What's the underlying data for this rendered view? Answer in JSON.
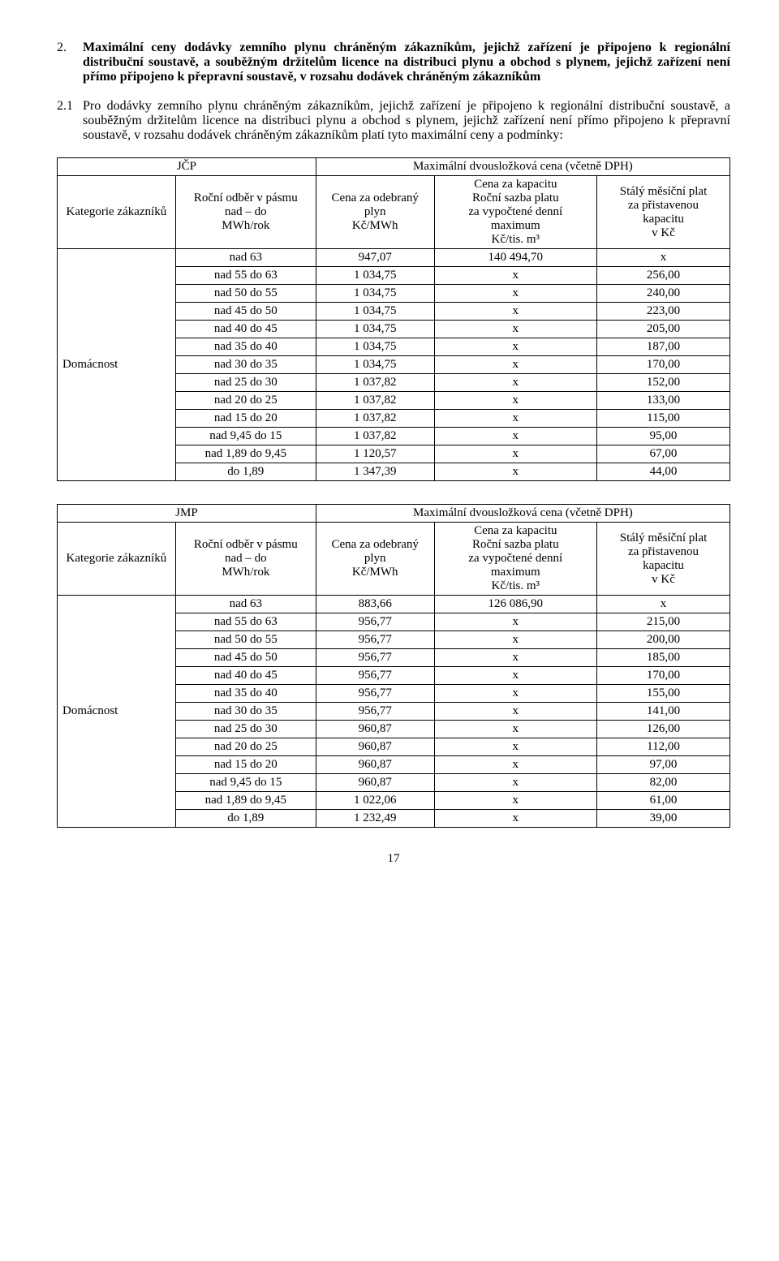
{
  "section2": {
    "num": "2.",
    "title": "Maximální ceny dodávky zemního plynu chráněným zákazníkům, jejichž zařízení je připojeno k regionální distribuční soustavě, a souběžným držitelům licence na distribuci plynu a obchod s plynem, jejichž zařízení není přímo připojeno k přepravní soustavě, v rozsahu dodávek chráněným zákazníkům"
  },
  "subsection21": {
    "num": "2.1",
    "body": "Pro dodávky zemního plynu chráněným zákazníkům, jejichž zařízení je připojeno k regionální distribuční soustavě, a souběžným držitelům licence na distribuci plynu a obchod s plynem, jejichž zařízení není přímo připojeno k přepravní soustavě, v rozsahu dodávek chráněným zákazníkům platí tyto maximální ceny a podmínky:"
  },
  "headers": {
    "merged": "Maximální dvousložková cena (včetně DPH)",
    "category": "Kategorie zákazníků",
    "range": "Roční odběr v pásmu\nnad – do\nMWh/rok",
    "price": "Cena za odebraný\nplyn\nKč/MWh",
    "capacity": "Cena za kapacitu\nRoční sazba platu\nza vypočtené denní\nmaximum\nKč/tis. m³",
    "monthly": "Stálý měsíční plat\nza přistavenou\nkapacitu\nv Kč"
  },
  "table_jcp": {
    "provider": "JČP",
    "category_label": "Domácnost",
    "rows": [
      {
        "range": "nad 63",
        "price": "947,07",
        "capacity": "140 494,70",
        "monthly": "x"
      },
      {
        "range": "nad 55 do 63",
        "price": "1 034,75",
        "capacity": "x",
        "monthly": "256,00"
      },
      {
        "range": "nad 50 do 55",
        "price": "1 034,75",
        "capacity": "x",
        "monthly": "240,00"
      },
      {
        "range": "nad 45 do 50",
        "price": "1 034,75",
        "capacity": "x",
        "monthly": "223,00"
      },
      {
        "range": "nad 40 do 45",
        "price": "1 034,75",
        "capacity": "x",
        "monthly": "205,00"
      },
      {
        "range": "nad 35 do 40",
        "price": "1 034,75",
        "capacity": "x",
        "monthly": "187,00"
      },
      {
        "range": "nad 30 do 35",
        "price": "1 034,75",
        "capacity": "x",
        "monthly": "170,00"
      },
      {
        "range": "nad 25 do 30",
        "price": "1 037,82",
        "capacity": "x",
        "monthly": "152,00"
      },
      {
        "range": "nad 20 do 25",
        "price": "1 037,82",
        "capacity": "x",
        "monthly": "133,00"
      },
      {
        "range": "nad 15 do 20",
        "price": "1 037,82",
        "capacity": "x",
        "monthly": "115,00"
      },
      {
        "range": "nad 9,45 do 15",
        "price": "1 037,82",
        "capacity": "x",
        "monthly": "95,00"
      },
      {
        "range": "nad 1,89 do 9,45",
        "price": "1 120,57",
        "capacity": "x",
        "monthly": "67,00"
      },
      {
        "range": "do 1,89",
        "price": "1 347,39",
        "capacity": "x",
        "monthly": "44,00"
      }
    ]
  },
  "table_jmp": {
    "provider": "JMP",
    "category_label": "Domácnost",
    "rows": [
      {
        "range": "nad 63",
        "price": "883,66",
        "capacity": "126 086,90",
        "monthly": "x"
      },
      {
        "range": "nad 55 do 63",
        "price": "956,77",
        "capacity": "x",
        "monthly": "215,00"
      },
      {
        "range": "nad 50 do 55",
        "price": "956,77",
        "capacity": "x",
        "monthly": "200,00"
      },
      {
        "range": "nad 45 do 50",
        "price": "956,77",
        "capacity": "x",
        "monthly": "185,00"
      },
      {
        "range": "nad 40 do 45",
        "price": "956,77",
        "capacity": "x",
        "monthly": "170,00"
      },
      {
        "range": "nad 35 do 40",
        "price": "956,77",
        "capacity": "x",
        "monthly": "155,00"
      },
      {
        "range": "nad 30 do 35",
        "price": "956,77",
        "capacity": "x",
        "monthly": "141,00"
      },
      {
        "range": "nad 25 do 30",
        "price": "960,87",
        "capacity": "x",
        "monthly": "126,00"
      },
      {
        "range": "nad 20 do 25",
        "price": "960,87",
        "capacity": "x",
        "monthly": "112,00"
      },
      {
        "range": "nad 15 do 20",
        "price": "960,87",
        "capacity": "x",
        "monthly": "97,00"
      },
      {
        "range": "nad 9,45 do 15",
        "price": "960,87",
        "capacity": "x",
        "monthly": "82,00"
      },
      {
        "range": "nad 1,89 do 9,45",
        "price": "1 022,06",
        "capacity": "x",
        "monthly": "61,00"
      },
      {
        "range": "do 1,89",
        "price": "1 232,49",
        "capacity": "x",
        "monthly": "39,00"
      }
    ]
  },
  "page_number": "17"
}
